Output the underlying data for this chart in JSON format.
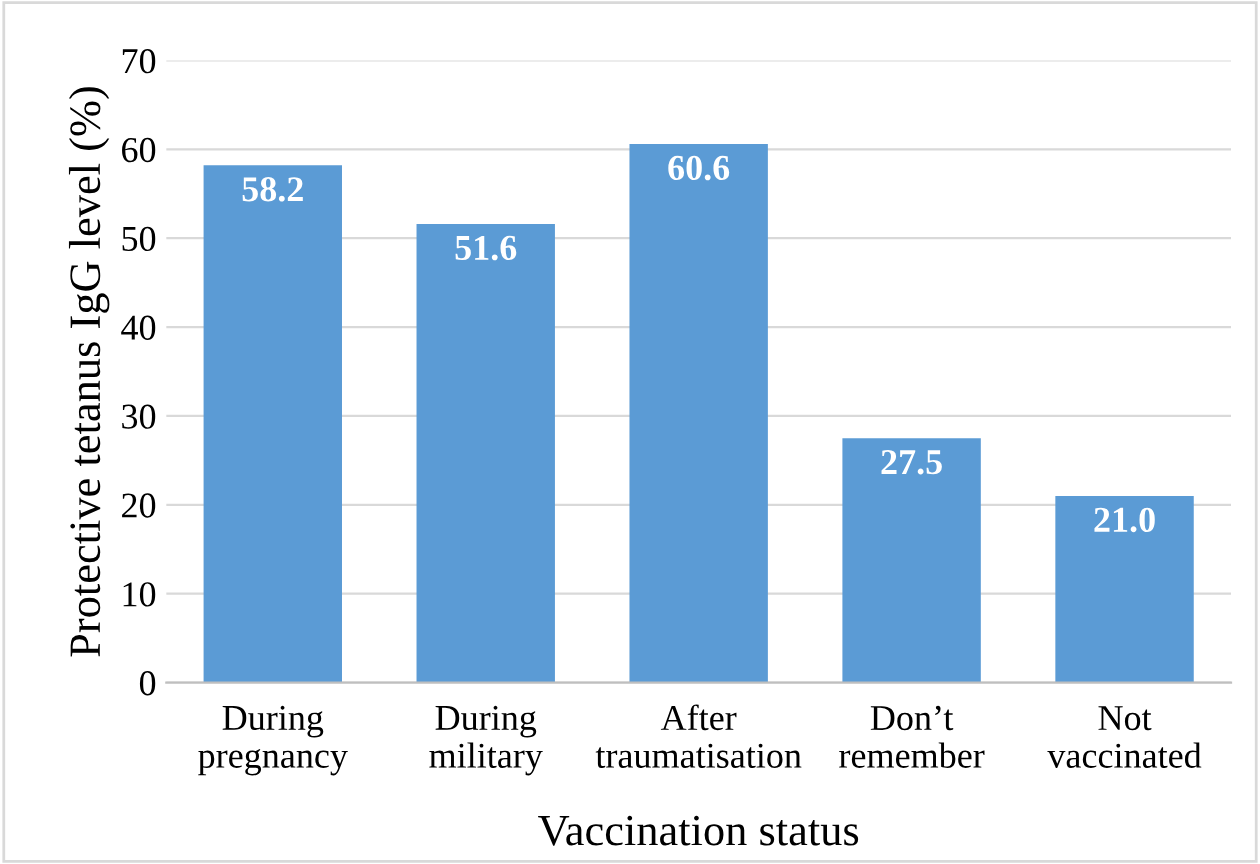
{
  "chart_data": {
    "type": "bar",
    "xlabel": "Vaccination status",
    "ylabel": "Protective tetanus IgG level (%)",
    "categories": [
      "During pregnancy",
      "During military",
      "After traumatisation",
      "Don’t remember",
      "Not vaccinated"
    ],
    "values": [
      58.2,
      51.6,
      60.6,
      27.5,
      21.0
    ],
    "value_labels": [
      "58.2",
      "51.6",
      "60.6",
      "27.5",
      "21.0"
    ],
    "color": "#5b9bd5",
    "ylim": [
      0,
      70
    ],
    "yticks": [
      0,
      10,
      20,
      30,
      40,
      50,
      60,
      70
    ],
    "grid": "y"
  }
}
